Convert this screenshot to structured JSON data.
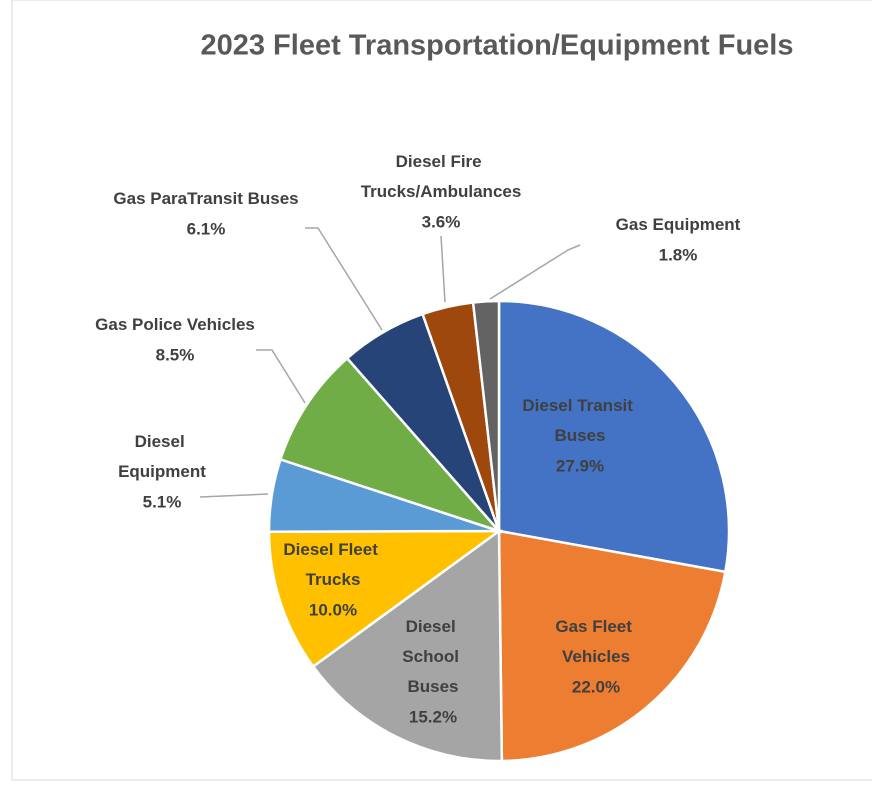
{
  "chart_data": {
    "type": "pie",
    "title": "2023 Fleet Transportation/Equipment Fuels",
    "categories": [
      "Diesel Transit Buses",
      "Gas Fleet Vehicles",
      "Diesel School Buses",
      "Diesel Fleet Trucks",
      "Diesel Equipment",
      "Gas Police Vehicles",
      "Gas ParaTransit Buses",
      "Diesel Fire Trucks/Ambulances",
      "Gas Equipment"
    ],
    "values": [
      27.9,
      22.0,
      15.2,
      10.0,
      5.1,
      8.5,
      6.1,
      3.6,
      1.8
    ],
    "value_labels": [
      "27.9%",
      "22.0%",
      "15.2%",
      "10.0%",
      "5.1%",
      "8.5%",
      "6.1%",
      "3.6%",
      "1.8%"
    ],
    "colors": [
      "#4472c4",
      "#ed7d31",
      "#a5a5a5",
      "#ffc000",
      "#5b9bd5",
      "#70ad47",
      "#264478",
      "#9e480e",
      "#636363"
    ]
  }
}
